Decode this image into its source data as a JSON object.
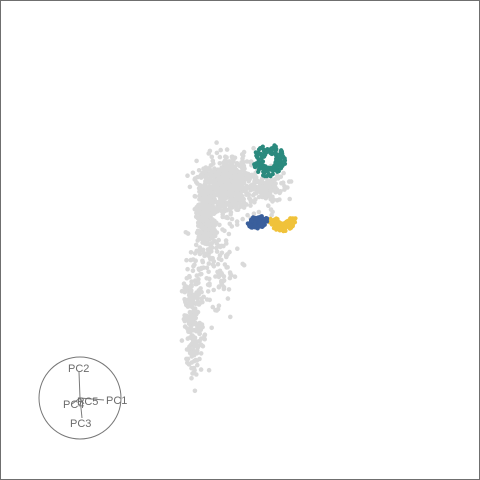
{
  "chart_data": {
    "type": "scatter",
    "title": "",
    "xlabel": "",
    "ylabel": "",
    "grid": false,
    "legend": "none",
    "projection": "3d-rotated-principal-components",
    "orientation_gizmo": {
      "axes": [
        "PC1",
        "PC2",
        "PC3",
        "PC4",
        "PC5"
      ]
    },
    "series": [
      {
        "color": "#d9d9d9",
        "role": "background"
      },
      {
        "color": "#2b8a7e",
        "role": "highlighted"
      },
      {
        "color": "#f0c23a",
        "role": "highlighted"
      },
      {
        "color": "#3a5f9c",
        "role": "highlighted"
      }
    ],
    "point_clouds": [
      {
        "series": 0,
        "count": 650,
        "cx": 0.1,
        "cy": 0.6,
        "sx": 0.14,
        "sy": 0.1
      },
      {
        "series": 0,
        "count": 380,
        "cx": -0.15,
        "cy": 0.38,
        "sx": 0.05,
        "sy": 0.12
      },
      {
        "series": 0,
        "count": 220,
        "cx": -0.28,
        "cy": -0.35,
        "sx": 0.05,
        "sy": 0.2
      },
      {
        "series": 0,
        "count": 110,
        "cx": -0.05,
        "cy": 0.05,
        "sx": 0.12,
        "sy": 0.2
      },
      {
        "series": 1,
        "count": 150,
        "cx": 0.52,
        "cy": 0.78,
        "sx": 0.09,
        "sy": 0.06
      },
      {
        "series": 2,
        "count": 110,
        "cx": 0.66,
        "cy": 0.37,
        "sx": 0.08,
        "sy": 0.05
      },
      {
        "series": 3,
        "count": 95,
        "cx": 0.38,
        "cy": 0.4,
        "sx": 0.08,
        "sy": 0.07
      },
      {
        "series": 0,
        "count": 120,
        "cx": 0.52,
        "cy": 0.58,
        "sx": 0.07,
        "sy": 0.07
      }
    ]
  }
}
